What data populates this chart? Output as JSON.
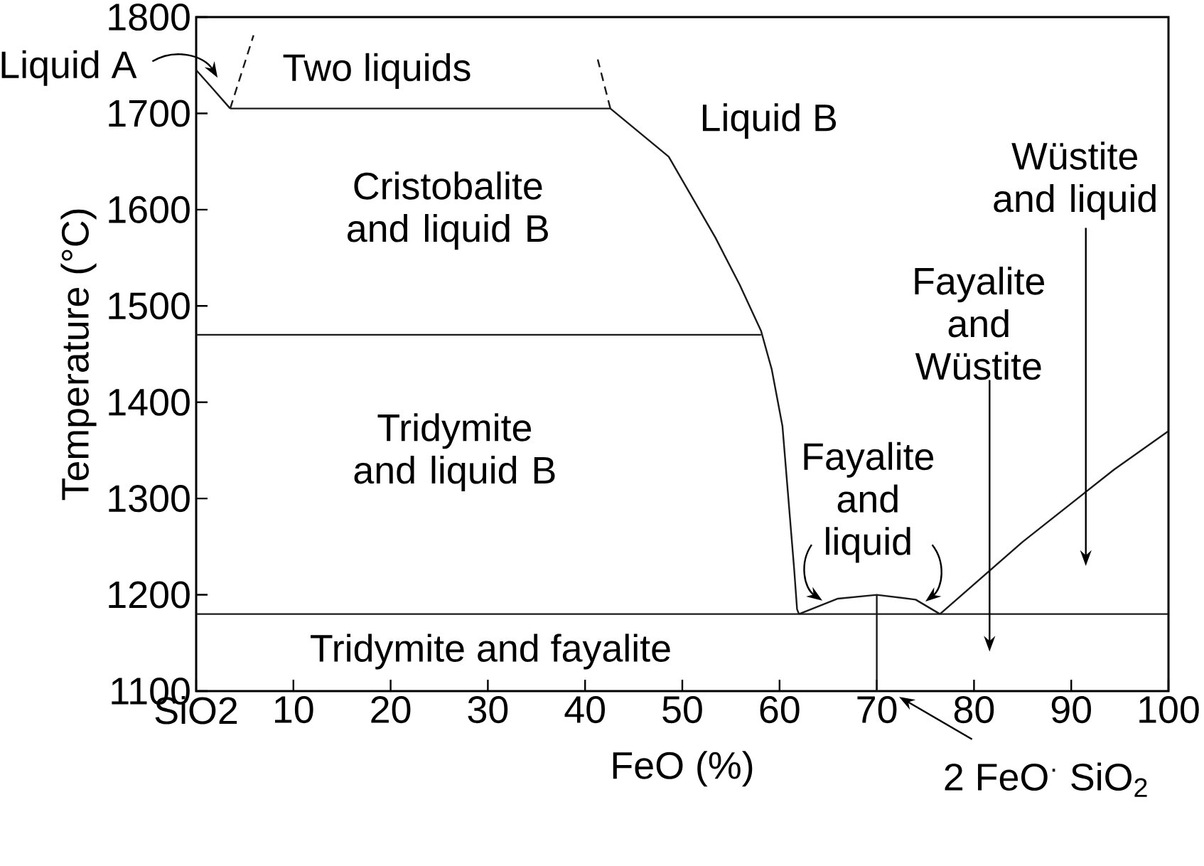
{
  "chart_data": {
    "type": "line",
    "xlabel": "FeO (%)",
    "ylabel": "Temperature (°C)",
    "xlim": [
      0,
      100
    ],
    "ylim": [
      1100,
      1800
    ],
    "xticks": [
      {
        "value": 0,
        "label": "SiO2"
      },
      10,
      20,
      30,
      40,
      50,
      60,
      70,
      80,
      90,
      100
    ],
    "yticks": [
      1100,
      1200,
      1300,
      1400,
      1500,
      1600,
      1700,
      1800
    ],
    "marker": "none",
    "series": [
      {
        "color": "#1a1a1a",
        "line_style": "solid",
        "x": [
          0,
          1.5,
          3.5
        ],
        "values": [
          1745,
          1728,
          1705
        ]
      },
      {
        "color": "#1a1a1a",
        "line_style": "dashed",
        "x": [
          3.5,
          5.9
        ],
        "values": [
          1705,
          1781
        ]
      },
      {
        "color": "#1a1a1a",
        "line_style": "solid",
        "x": [
          3.5,
          42.6
        ],
        "values": [
          1705,
          1705
        ]
      },
      {
        "color": "#1a1a1a",
        "line_style": "dashed",
        "x": [
          42.6,
          41.3
        ],
        "values": [
          1705,
          1756
        ]
      },
      {
        "color": "#1a1a1a",
        "line_style": "solid",
        "x": [
          42.6,
          48.6,
          53.4,
          55.9,
          58.1,
          59.2,
          60.3,
          61.5,
          61.8,
          62
        ],
        "values": [
          1705,
          1655,
          1571,
          1522,
          1474,
          1434,
          1375,
          1227,
          1185,
          1180
        ]
      },
      {
        "color": "#1a1a1a",
        "line_style": "solid",
        "x": [
          0,
          58.1
        ],
        "values": [
          1470,
          1470
        ]
      },
      {
        "color": "#1a1a1a",
        "line_style": "solid",
        "x": [
          0,
          100
        ],
        "values": [
          1180,
          1180
        ]
      },
      {
        "color": "#1a1a1a",
        "line_style": "solid",
        "x": [
          62,
          66,
          70,
          74,
          76.5
        ],
        "values": [
          1180,
          1196,
          1200,
          1195,
          1180
        ]
      },
      {
        "color": "#1a1a1a",
        "line_style": "solid",
        "x": [
          70,
          70
        ],
        "values": [
          1200,
          1100
        ]
      },
      {
        "color": "#1a1a1a",
        "line_style": "solid",
        "x": [
          76.5,
          85,
          94.4,
          100
        ],
        "values": [
          1180,
          1255,
          1330,
          1370
        ]
      }
    ],
    "annotations": [
      "Liquid A",
      "Two liquids",
      "Liquid B",
      "Cristobalite and liquid B",
      "Tridymite and liquid B",
      "Tridymite and fayalite",
      "Fayalite and liquid",
      "Fayalite and Wüstite",
      "Wüstite and liquid",
      "2 FeO$^{·}$ SiO$_{2}$"
    ]
  }
}
